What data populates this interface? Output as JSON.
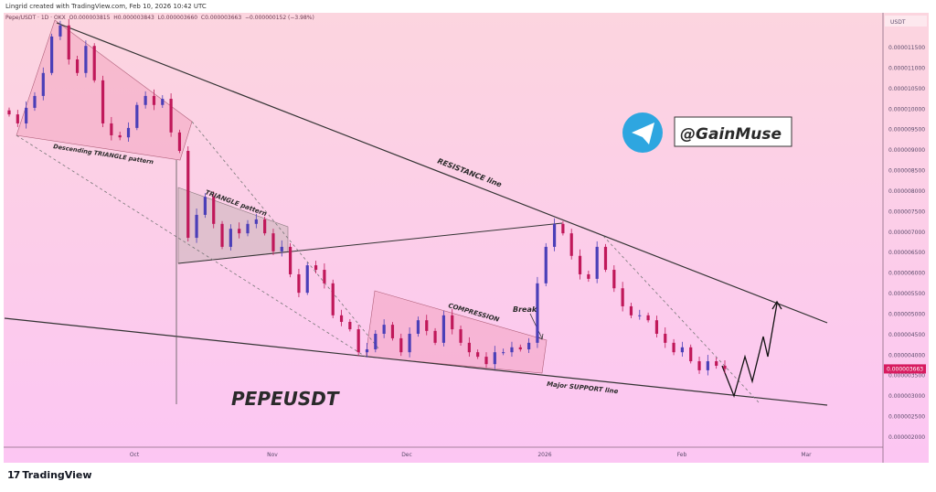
{
  "header": {
    "credit": "Lingrid created with TradingView.com, Feb 10, 2026 10:42 UTC",
    "symbol": "Pepe/USDT · 1D · OKX",
    "open": "O0.000003815",
    "high": "H0.000003843",
    "low": "L0.000003660",
    "close": "C0.000003663",
    "change": "−0.000000152 (−3.98%)"
  },
  "footer": {
    "brand": "TradingView"
  },
  "colors": {
    "up": "#4b3fb8",
    "down": "#c0185a",
    "last_price_bg": "#d81b60",
    "telegram": "#2ea6e0"
  },
  "chart_data": {
    "type": "candlestick",
    "symbol": "PEPEUSDT",
    "currency_label": "USDT",
    "y_ticks": [
      "0.000011500",
      "0.000011000",
      "0.000010500",
      "0.000010000",
      "0.000009500",
      "0.000009000",
      "0.000008500",
      "0.000008000",
      "0.000007500",
      "0.000007000",
      "0.000006500",
      "0.000006000",
      "0.000005500",
      "0.000005000",
      "0.000004500",
      "0.000004000",
      "0.000003500",
      "0.000003000",
      "0.000002500",
      "0.000002000"
    ],
    "x_ticks": [
      "Oct",
      "Nov",
      "Dec",
      "2026",
      "Feb",
      "Mar"
    ],
    "last_price": "0.000003663",
    "closes": [
      9.87e-06,
      9.65e-06,
      1.003e-05,
      1.032e-05,
      1.088e-05,
      1.177e-05,
      1.204e-05,
      1.121e-05,
      1.088e-05,
      1.154e-05,
      1.07e-05,
      9.65e-06,
      9.36e-06,
      9.31e-06,
      9.54e-06,
      1.01e-05,
      1.032e-05,
      1.01e-05,
      1.025e-05,
      9.43e-06,
      8.98e-06,
      6.86e-06,
      7.42e-06,
      7.86e-06,
      7.2e-06,
      6.64e-06,
      7.08e-06,
      6.97e-06,
      7.2e-06,
      7.31e-06,
      6.97e-06,
      6.53e-06,
      6.64e-06,
      5.97e-06,
      5.52e-06,
      6.19e-06,
      6.08e-06,
      5.75e-06,
      4.97e-06,
      4.81e-06,
      4.63e-06,
      4.07e-06,
      4.14e-06,
      4.52e-06,
      4.74e-06,
      4.41e-06,
      4.07e-06,
      4.52e-06,
      4.85e-06,
      4.59e-06,
      4.3e-06,
      4.97e-06,
      4.63e-06,
      4.3e-06,
      4.07e-06,
      3.96e-06,
      3.78e-06,
      4.07e-06,
      4.07e-06,
      4.19e-06,
      4.14e-06,
      4.3e-06,
      5.75e-06,
      6.64e-06,
      7.2e-06,
      6.97e-06,
      6.42e-06,
      5.97e-06,
      5.86e-06,
      6.64e-06,
      6.08e-06,
      5.63e-06,
      5.19e-06,
      4.97e-06,
      4.97e-06,
      4.85e-06,
      4.52e-06,
      4.3e-06,
      4.07e-06,
      4.19e-06,
      3.85e-06,
      3.63e-06,
      3.85e-06,
      3.74e-06,
      3.663e-06
    ],
    "annotations": {
      "descending_triangle": "Descending TRIANGLE pattern",
      "triangle": "TRIANGLE pattern",
      "resistance": "RESISTANCE line",
      "compression": "COMPRESSION",
      "break": "Break",
      "support": "Major SUPPORT line",
      "title": "PEPEUSDT",
      "handle": "@GainMuse"
    }
  }
}
